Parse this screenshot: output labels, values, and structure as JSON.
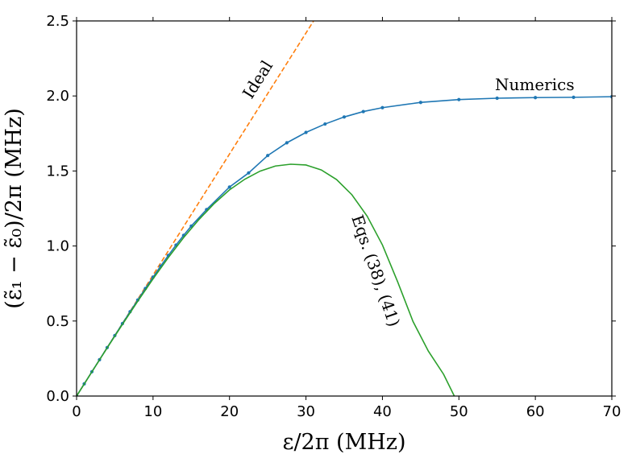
{
  "chart_data": {
    "type": "line",
    "xlabel": "ε/2π (MHz)",
    "ylabel": "(ε̃₁ − ε̃₀)/2π (MHz)",
    "xlim": [
      0,
      70
    ],
    "ylim": [
      0,
      2.5
    ],
    "xticks": [
      "0",
      "10",
      "20",
      "30",
      "40",
      "50",
      "60",
      "70"
    ],
    "yticks": [
      "0.0",
      "0.5",
      "1.0",
      "1.5",
      "2.0",
      "2.5"
    ],
    "grid": false,
    "annotations": {
      "ideal": "Ideal",
      "numerics": "Numerics",
      "eqs": "Eqs. (38), (41)"
    },
    "series": [
      {
        "key": "ideal",
        "color": "#ff7f0e",
        "style": "dashed",
        "x": [
          0,
          31
        ],
        "y": [
          0,
          2.5
        ]
      },
      {
        "key": "numerics",
        "color": "#1f77b4",
        "style": "solid-markers",
        "x": [
          0,
          1,
          2,
          3,
          4,
          5,
          6,
          7,
          8,
          9,
          10,
          11,
          12,
          13,
          14,
          15,
          17,
          20,
          22.5,
          25,
          27.5,
          30,
          32.5,
          35,
          37.5,
          40,
          45,
          50,
          55,
          60,
          65,
          70
        ],
        "y": [
          0,
          0.081,
          0.162,
          0.242,
          0.323,
          0.403,
          0.483,
          0.562,
          0.64,
          0.717,
          0.792,
          0.866,
          0.937,
          1.006,
          1.071,
          1.133,
          1.243,
          1.393,
          1.487,
          1.603,
          1.688,
          1.757,
          1.813,
          1.86,
          1.896,
          1.922,
          1.957,
          1.976,
          1.985,
          1.989,
          1.991,
          1.995
        ]
      },
      {
        "key": "eqs",
        "color": "#2ca02c",
        "style": "solid",
        "x": [
          0,
          2,
          4,
          6,
          8,
          10,
          12,
          14,
          16,
          18,
          20,
          22,
          24,
          26,
          28,
          30,
          32,
          34,
          36,
          38,
          40,
          42,
          44,
          46,
          48,
          49.4
        ],
        "y": [
          0,
          0.161,
          0.321,
          0.478,
          0.632,
          0.781,
          0.923,
          1.056,
          1.176,
          1.283,
          1.374,
          1.445,
          1.499,
          1.533,
          1.545,
          1.54,
          1.507,
          1.443,
          1.342,
          1.199,
          1.007,
          0.76,
          0.497,
          0.3,
          0.145,
          0
        ]
      }
    ]
  }
}
